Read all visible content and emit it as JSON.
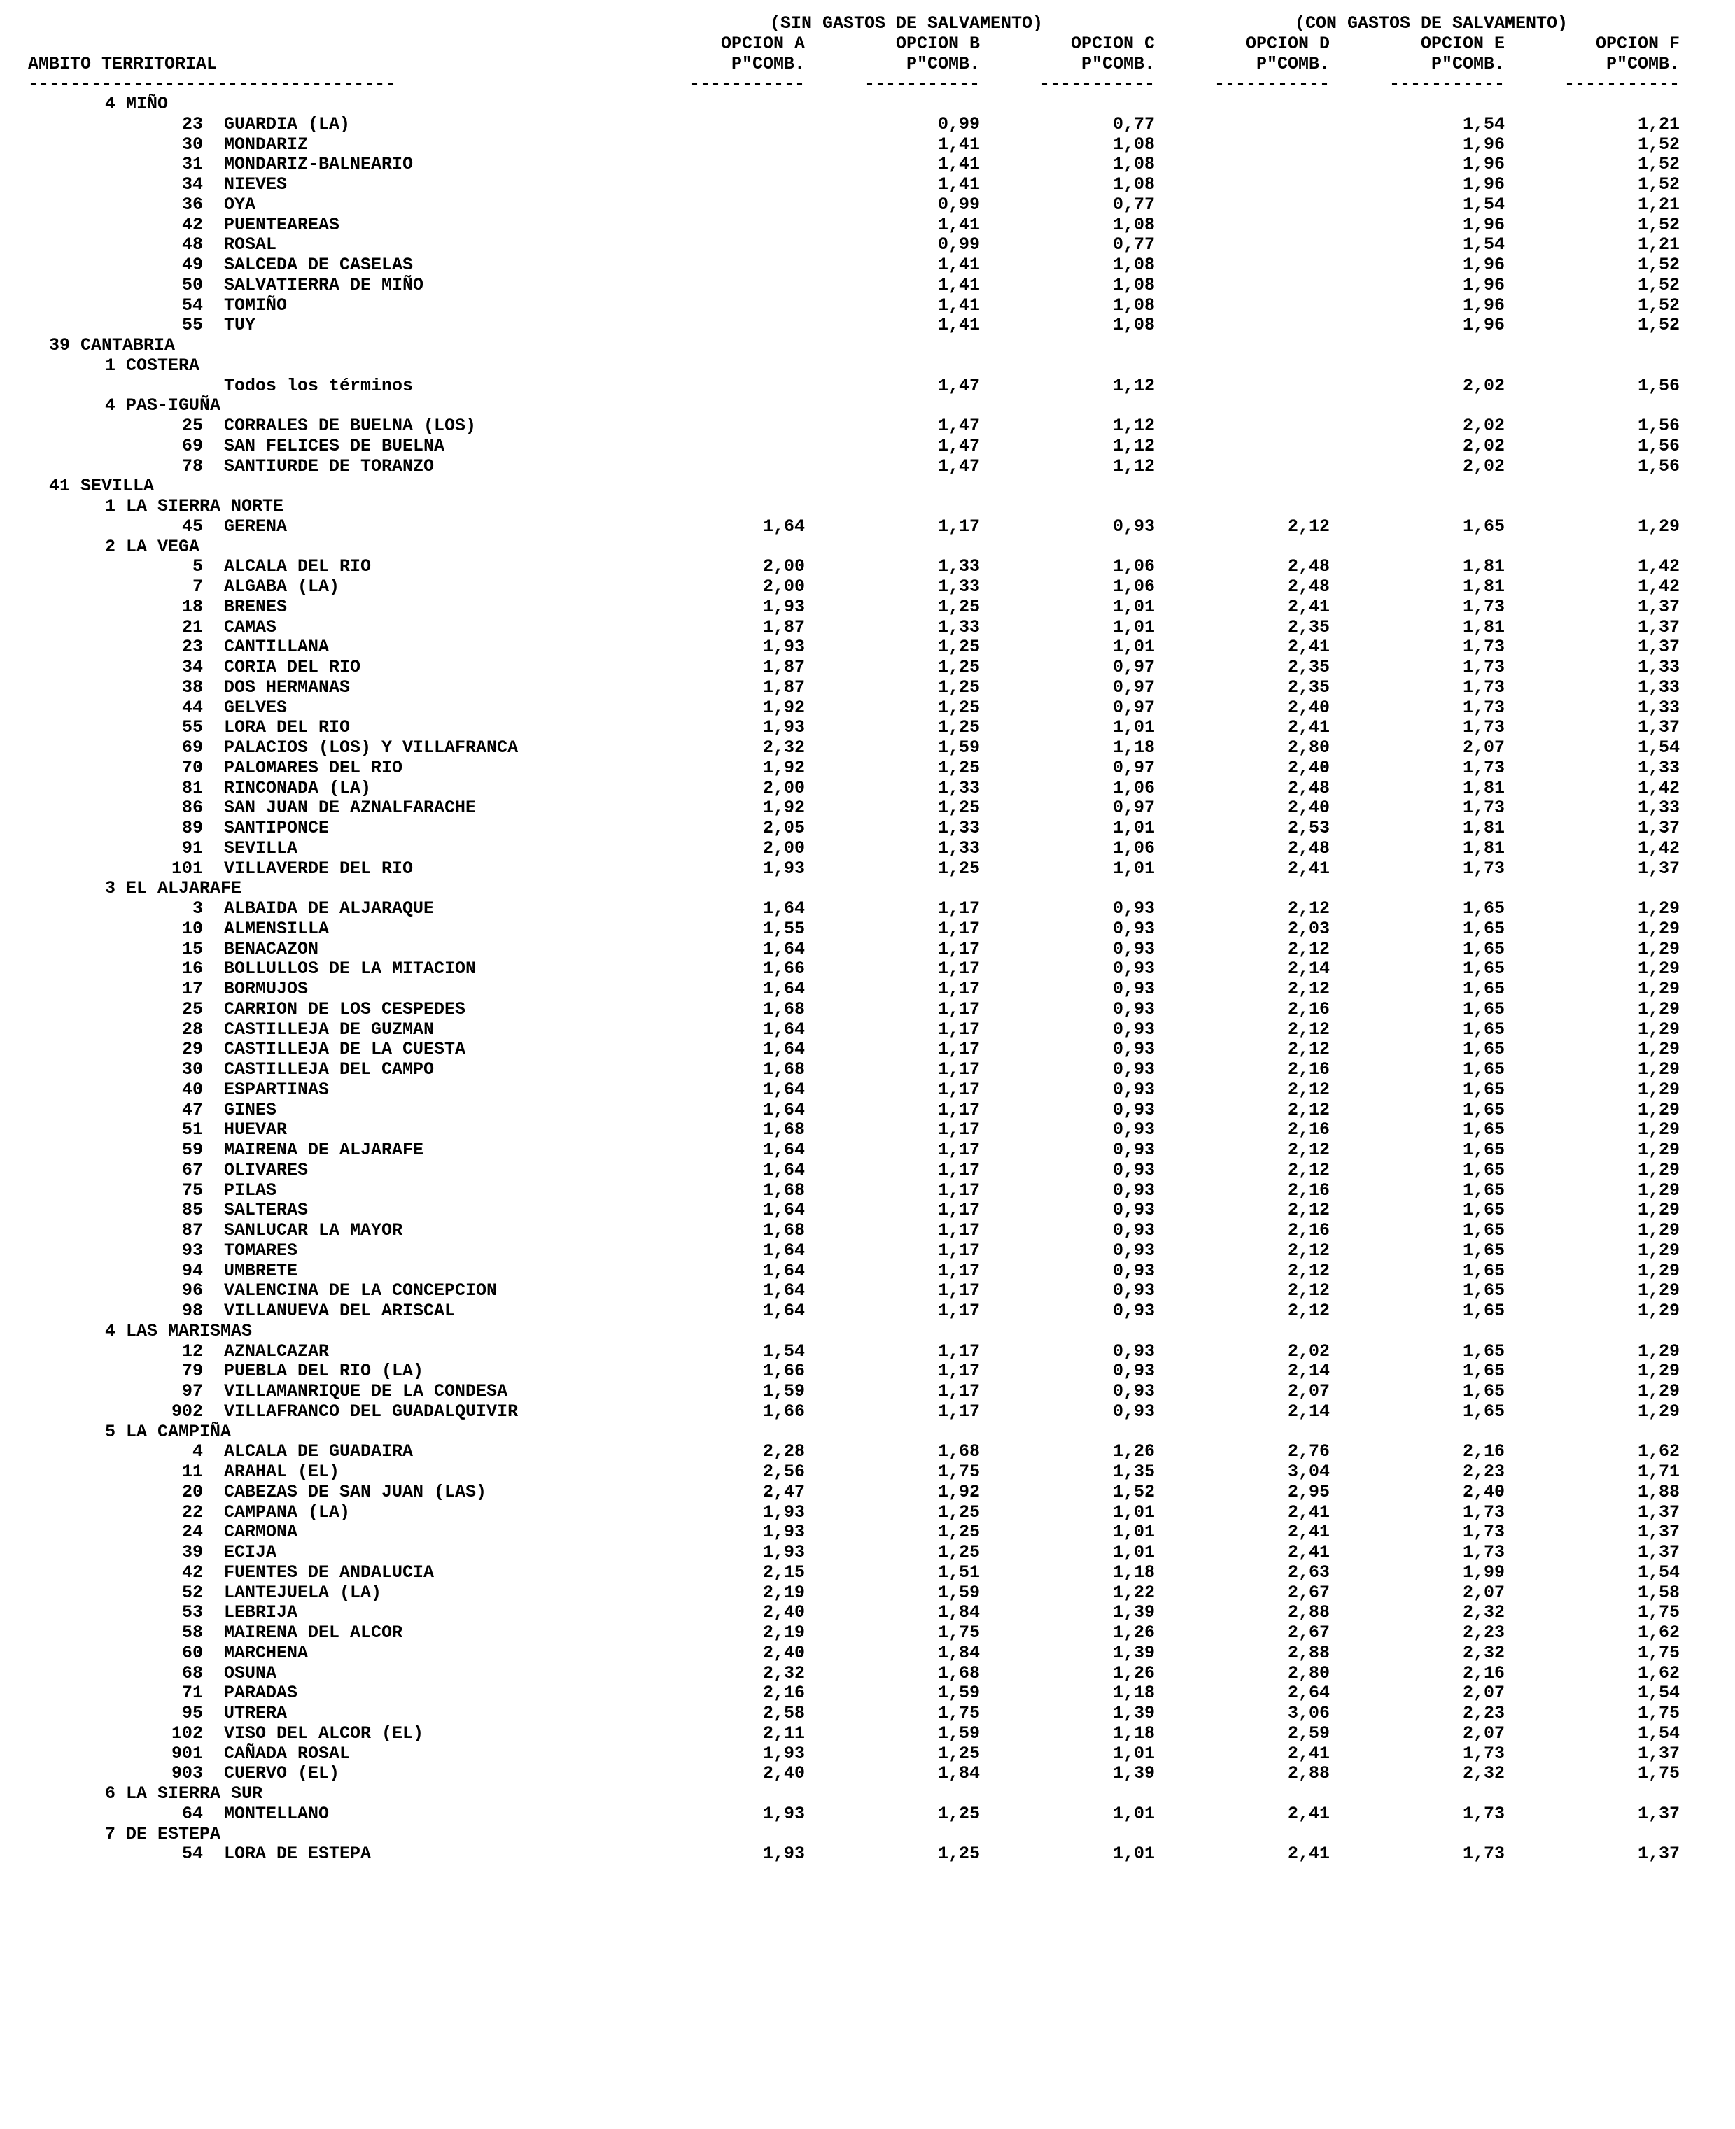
{
  "headers": {
    "ambito": "AMBITO TERRITORIAL",
    "group_sin": "(SIN GASTOS DE SALVAMENTO)",
    "group_con": "(CON GASTOS DE SALVAMENTO)",
    "opA1": "OPCION A",
    "opA2": "P\"COMB.",
    "opB1": "OPCION B",
    "opB2": "P\"COMB.",
    "opC1": "OPCION C",
    "opC2": "P\"COMB.",
    "opD1": "OPCION D",
    "opD2": "P\"COMB.",
    "opE1": "OPCION E",
    "opE2": "P\"COMB.",
    "opF1": "OPCION F",
    "opF2": "P\"COMB."
  },
  "sep": {
    "ambito": "-----------------------------------",
    "col": "-----------"
  },
  "sections": [
    {
      "comarca": "4 MIÑO",
      "rows": [
        {
          "code": "23",
          "name": "GUARDIA (LA)",
          "a": "",
          "b": "0,99",
          "c": "0,77",
          "d": "",
          "e": "1,54",
          "f": "1,21"
        },
        {
          "code": "30",
          "name": "MONDARIZ",
          "a": "",
          "b": "1,41",
          "c": "1,08",
          "d": "",
          "e": "1,96",
          "f": "1,52"
        },
        {
          "code": "31",
          "name": "MONDARIZ-BALNEARIO",
          "a": "",
          "b": "1,41",
          "c": "1,08",
          "d": "",
          "e": "1,96",
          "f": "1,52"
        },
        {
          "code": "34",
          "name": "NIEVES",
          "a": "",
          "b": "1,41",
          "c": "1,08",
          "d": "",
          "e": "1,96",
          "f": "1,52"
        },
        {
          "code": "36",
          "name": "OYA",
          "a": "",
          "b": "0,99",
          "c": "0,77",
          "d": "",
          "e": "1,54",
          "f": "1,21"
        },
        {
          "code": "42",
          "name": "PUENTEAREAS",
          "a": "",
          "b": "1,41",
          "c": "1,08",
          "d": "",
          "e": "1,96",
          "f": "1,52"
        },
        {
          "code": "48",
          "name": "ROSAL",
          "a": "",
          "b": "0,99",
          "c": "0,77",
          "d": "",
          "e": "1,54",
          "f": "1,21"
        },
        {
          "code": "49",
          "name": "SALCEDA DE CASELAS",
          "a": "",
          "b": "1,41",
          "c": "1,08",
          "d": "",
          "e": "1,96",
          "f": "1,52"
        },
        {
          "code": "50",
          "name": "SALVATIERRA DE MIÑO",
          "a": "",
          "b": "1,41",
          "c": "1,08",
          "d": "",
          "e": "1,96",
          "f": "1,52"
        },
        {
          "code": "54",
          "name": "TOMIÑO",
          "a": "",
          "b": "1,41",
          "c": "1,08",
          "d": "",
          "e": "1,96",
          "f": "1,52"
        },
        {
          "code": "55",
          "name": "TUY",
          "a": "",
          "b": "1,41",
          "c": "1,08",
          "d": "",
          "e": "1,96",
          "f": "1,52"
        }
      ]
    },
    {
      "prov": "39 CANTABRIA",
      "comarca": "1 COSTERA",
      "rows": [
        {
          "full": "Todos los términos",
          "a": "",
          "b": "1,47",
          "c": "1,12",
          "d": "",
          "e": "2,02",
          "f": "1,56"
        }
      ]
    },
    {
      "comarca": "4 PAS-IGUÑA",
      "rows": [
        {
          "code": "25",
          "name": "CORRALES DE BUELNA (LOS)",
          "a": "",
          "b": "1,47",
          "c": "1,12",
          "d": "",
          "e": "2,02",
          "f": "1,56"
        },
        {
          "code": "69",
          "name": "SAN FELICES DE BUELNA",
          "a": "",
          "b": "1,47",
          "c": "1,12",
          "d": "",
          "e": "2,02",
          "f": "1,56"
        },
        {
          "code": "78",
          "name": "SANTIURDE DE TORANZO",
          "a": "",
          "b": "1,47",
          "c": "1,12",
          "d": "",
          "e": "2,02",
          "f": "1,56"
        }
      ]
    },
    {
      "prov": "41 SEVILLA",
      "comarca": "1 LA SIERRA NORTE",
      "rows": [
        {
          "code": "45",
          "name": "GERENA",
          "a": "1,64",
          "b": "1,17",
          "c": "0,93",
          "d": "2,12",
          "e": "1,65",
          "f": "1,29"
        }
      ]
    },
    {
      "comarca": "2 LA VEGA",
      "rows": [
        {
          "code": "5",
          "name": "ALCALA DEL RIO",
          "a": "2,00",
          "b": "1,33",
          "c": "1,06",
          "d": "2,48",
          "e": "1,81",
          "f": "1,42"
        },
        {
          "code": "7",
          "name": "ALGABA (LA)",
          "a": "2,00",
          "b": "1,33",
          "c": "1,06",
          "d": "2,48",
          "e": "1,81",
          "f": "1,42"
        },
        {
          "code": "18",
          "name": "BRENES",
          "a": "1,93",
          "b": "1,25",
          "c": "1,01",
          "d": "2,41",
          "e": "1,73",
          "f": "1,37"
        },
        {
          "code": "21",
          "name": "CAMAS",
          "a": "1,87",
          "b": "1,33",
          "c": "1,01",
          "d": "2,35",
          "e": "1,81",
          "f": "1,37"
        },
        {
          "code": "23",
          "name": "CANTILLANA",
          "a": "1,93",
          "b": "1,25",
          "c": "1,01",
          "d": "2,41",
          "e": "1,73",
          "f": "1,37"
        },
        {
          "code": "34",
          "name": "CORIA DEL RIO",
          "a": "1,87",
          "b": "1,25",
          "c": "0,97",
          "d": "2,35",
          "e": "1,73",
          "f": "1,33"
        },
        {
          "code": "38",
          "name": "DOS HERMANAS",
          "a": "1,87",
          "b": "1,25",
          "c": "0,97",
          "d": "2,35",
          "e": "1,73",
          "f": "1,33"
        },
        {
          "code": "44",
          "name": "GELVES",
          "a": "1,92",
          "b": "1,25",
          "c": "0,97",
          "d": "2,40",
          "e": "1,73",
          "f": "1,33"
        },
        {
          "code": "55",
          "name": "LORA DEL RIO",
          "a": "1,93",
          "b": "1,25",
          "c": "1,01",
          "d": "2,41",
          "e": "1,73",
          "f": "1,37"
        },
        {
          "code": "69",
          "name": "PALACIOS (LOS) Y VILLAFRANCA",
          "a": "2,32",
          "b": "1,59",
          "c": "1,18",
          "d": "2,80",
          "e": "2,07",
          "f": "1,54"
        },
        {
          "code": "70",
          "name": "PALOMARES DEL RIO",
          "a": "1,92",
          "b": "1,25",
          "c": "0,97",
          "d": "2,40",
          "e": "1,73",
          "f": "1,33"
        },
        {
          "code": "81",
          "name": "RINCONADA (LA)",
          "a": "2,00",
          "b": "1,33",
          "c": "1,06",
          "d": "2,48",
          "e": "1,81",
          "f": "1,42"
        },
        {
          "code": "86",
          "name": "SAN JUAN DE AZNALFARACHE",
          "a": "1,92",
          "b": "1,25",
          "c": "0,97",
          "d": "2,40",
          "e": "1,73",
          "f": "1,33"
        },
        {
          "code": "89",
          "name": "SANTIPONCE",
          "a": "2,05",
          "b": "1,33",
          "c": "1,01",
          "d": "2,53",
          "e": "1,81",
          "f": "1,37"
        },
        {
          "code": "91",
          "name": "SEVILLA",
          "a": "2,00",
          "b": "1,33",
          "c": "1,06",
          "d": "2,48",
          "e": "1,81",
          "f": "1,42"
        },
        {
          "code": "101",
          "name": "VILLAVERDE DEL RIO",
          "a": "1,93",
          "b": "1,25",
          "c": "1,01",
          "d": "2,41",
          "e": "1,73",
          "f": "1,37"
        }
      ]
    },
    {
      "comarca": "3 EL ALJARAFE",
      "rows": [
        {
          "code": "3",
          "name": "ALBAIDA DE ALJARAQUE",
          "a": "1,64",
          "b": "1,17",
          "c": "0,93",
          "d": "2,12",
          "e": "1,65",
          "f": "1,29"
        },
        {
          "code": "10",
          "name": "ALMENSILLA",
          "a": "1,55",
          "b": "1,17",
          "c": "0,93",
          "d": "2,03",
          "e": "1,65",
          "f": "1,29"
        },
        {
          "code": "15",
          "name": "BENACAZON",
          "a": "1,64",
          "b": "1,17",
          "c": "0,93",
          "d": "2,12",
          "e": "1,65",
          "f": "1,29"
        },
        {
          "code": "16",
          "name": "BOLLULLOS DE LA MITACION",
          "a": "1,66",
          "b": "1,17",
          "c": "0,93",
          "d": "2,14",
          "e": "1,65",
          "f": "1,29"
        },
        {
          "code": "17",
          "name": "BORMUJOS",
          "a": "1,64",
          "b": "1,17",
          "c": "0,93",
          "d": "2,12",
          "e": "1,65",
          "f": "1,29"
        },
        {
          "code": "25",
          "name": "CARRION DE LOS CESPEDES",
          "a": "1,68",
          "b": "1,17",
          "c": "0,93",
          "d": "2,16",
          "e": "1,65",
          "f": "1,29"
        },
        {
          "code": "28",
          "name": "CASTILLEJA DE GUZMAN",
          "a": "1,64",
          "b": "1,17",
          "c": "0,93",
          "d": "2,12",
          "e": "1,65",
          "f": "1,29"
        },
        {
          "code": "29",
          "name": "CASTILLEJA DE LA CUESTA",
          "a": "1,64",
          "b": "1,17",
          "c": "0,93",
          "d": "2,12",
          "e": "1,65",
          "f": "1,29"
        },
        {
          "code": "30",
          "name": "CASTILLEJA DEL CAMPO",
          "a": "1,68",
          "b": "1,17",
          "c": "0,93",
          "d": "2,16",
          "e": "1,65",
          "f": "1,29"
        },
        {
          "code": "40",
          "name": "ESPARTINAS",
          "a": "1,64",
          "b": "1,17",
          "c": "0,93",
          "d": "2,12",
          "e": "1,65",
          "f": "1,29"
        },
        {
          "code": "47",
          "name": "GINES",
          "a": "1,64",
          "b": "1,17",
          "c": "0,93",
          "d": "2,12",
          "e": "1,65",
          "f": "1,29"
        },
        {
          "code": "51",
          "name": "HUEVAR",
          "a": "1,68",
          "b": "1,17",
          "c": "0,93",
          "d": "2,16",
          "e": "1,65",
          "f": "1,29"
        },
        {
          "code": "59",
          "name": "MAIRENA DE ALJARAFE",
          "a": "1,64",
          "b": "1,17",
          "c": "0,93",
          "d": "2,12",
          "e": "1,65",
          "f": "1,29"
        },
        {
          "code": "67",
          "name": "OLIVARES",
          "a": "1,64",
          "b": "1,17",
          "c": "0,93",
          "d": "2,12",
          "e": "1,65",
          "f": "1,29"
        },
        {
          "code": "75",
          "name": "PILAS",
          "a": "1,68",
          "b": "1,17",
          "c": "0,93",
          "d": "2,16",
          "e": "1,65",
          "f": "1,29"
        },
        {
          "code": "85",
          "name": "SALTERAS",
          "a": "1,64",
          "b": "1,17",
          "c": "0,93",
          "d": "2,12",
          "e": "1,65",
          "f": "1,29"
        },
        {
          "code": "87",
          "name": "SANLUCAR LA MAYOR",
          "a": "1,68",
          "b": "1,17",
          "c": "0,93",
          "d": "2,16",
          "e": "1,65",
          "f": "1,29"
        },
        {
          "code": "93",
          "name": "TOMARES",
          "a": "1,64",
          "b": "1,17",
          "c": "0,93",
          "d": "2,12",
          "e": "1,65",
          "f": "1,29"
        },
        {
          "code": "94",
          "name": "UMBRETE",
          "a": "1,64",
          "b": "1,17",
          "c": "0,93",
          "d": "2,12",
          "e": "1,65",
          "f": "1,29"
        },
        {
          "code": "96",
          "name": "VALENCINA DE LA CONCEPCION",
          "a": "1,64",
          "b": "1,17",
          "c": "0,93",
          "d": "2,12",
          "e": "1,65",
          "f": "1,29"
        },
        {
          "code": "98",
          "name": "VILLANUEVA DEL ARISCAL",
          "a": "1,64",
          "b": "1,17",
          "c": "0,93",
          "d": "2,12",
          "e": "1,65",
          "f": "1,29"
        }
      ]
    },
    {
      "comarca": "4 LAS MARISMAS",
      "rows": [
        {
          "code": "12",
          "name": "AZNALCAZAR",
          "a": "1,54",
          "b": "1,17",
          "c": "0,93",
          "d": "2,02",
          "e": "1,65",
          "f": "1,29"
        },
        {
          "code": "79",
          "name": "PUEBLA DEL RIO (LA)",
          "a": "1,66",
          "b": "1,17",
          "c": "0,93",
          "d": "2,14",
          "e": "1,65",
          "f": "1,29"
        },
        {
          "code": "97",
          "name": "VILLAMANRIQUE DE LA CONDESA",
          "a": "1,59",
          "b": "1,17",
          "c": "0,93",
          "d": "2,07",
          "e": "1,65",
          "f": "1,29"
        },
        {
          "code": "902",
          "name": "VILLAFRANCO DEL GUADALQUIVIR",
          "a": "1,66",
          "b": "1,17",
          "c": "0,93",
          "d": "2,14",
          "e": "1,65",
          "f": "1,29"
        }
      ]
    },
    {
      "comarca": "5 LA CAMPIÑA",
      "rows": [
        {
          "code": "4",
          "name": "ALCALA DE GUADAIRA",
          "a": "2,28",
          "b": "1,68",
          "c": "1,26",
          "d": "2,76",
          "e": "2,16",
          "f": "1,62"
        },
        {
          "code": "11",
          "name": "ARAHAL (EL)",
          "a": "2,56",
          "b": "1,75",
          "c": "1,35",
          "d": "3,04",
          "e": "2,23",
          "f": "1,71"
        },
        {
          "code": "20",
          "name": "CABEZAS DE SAN JUAN (LAS)",
          "a": "2,47",
          "b": "1,92",
          "c": "1,52",
          "d": "2,95",
          "e": "2,40",
          "f": "1,88"
        },
        {
          "code": "22",
          "name": "CAMPANA (LA)",
          "a": "1,93",
          "b": "1,25",
          "c": "1,01",
          "d": "2,41",
          "e": "1,73",
          "f": "1,37"
        },
        {
          "code": "24",
          "name": "CARMONA",
          "a": "1,93",
          "b": "1,25",
          "c": "1,01",
          "d": "2,41",
          "e": "1,73",
          "f": "1,37"
        },
        {
          "code": "39",
          "name": "ECIJA",
          "a": "1,93",
          "b": "1,25",
          "c": "1,01",
          "d": "2,41",
          "e": "1,73",
          "f": "1,37"
        },
        {
          "code": "42",
          "name": "FUENTES DE ANDALUCIA",
          "a": "2,15",
          "b": "1,51",
          "c": "1,18",
          "d": "2,63",
          "e": "1,99",
          "f": "1,54"
        },
        {
          "code": "52",
          "name": "LANTEJUELA (LA)",
          "a": "2,19",
          "b": "1,59",
          "c": "1,22",
          "d": "2,67",
          "e": "2,07",
          "f": "1,58"
        },
        {
          "code": "53",
          "name": "LEBRIJA",
          "a": "2,40",
          "b": "1,84",
          "c": "1,39",
          "d": "2,88",
          "e": "2,32",
          "f": "1,75"
        },
        {
          "code": "58",
          "name": "MAIRENA DEL ALCOR",
          "a": "2,19",
          "b": "1,75",
          "c": "1,26",
          "d": "2,67",
          "e": "2,23",
          "f": "1,62"
        },
        {
          "code": "60",
          "name": "MARCHENA",
          "a": "2,40",
          "b": "1,84",
          "c": "1,39",
          "d": "2,88",
          "e": "2,32",
          "f": "1,75"
        },
        {
          "code": "68",
          "name": "OSUNA",
          "a": "2,32",
          "b": "1,68",
          "c": "1,26",
          "d": "2,80",
          "e": "2,16",
          "f": "1,62"
        },
        {
          "code": "71",
          "name": "PARADAS",
          "a": "2,16",
          "b": "1,59",
          "c": "1,18",
          "d": "2,64",
          "e": "2,07",
          "f": "1,54"
        },
        {
          "code": "95",
          "name": "UTRERA",
          "a": "2,58",
          "b": "1,75",
          "c": "1,39",
          "d": "3,06",
          "e": "2,23",
          "f": "1,75"
        },
        {
          "code": "102",
          "name": "VISO DEL ALCOR (EL)",
          "a": "2,11",
          "b": "1,59",
          "c": "1,18",
          "d": "2,59",
          "e": "2,07",
          "f": "1,54"
        },
        {
          "code": "901",
          "name": "CAÑADA ROSAL",
          "a": "1,93",
          "b": "1,25",
          "c": "1,01",
          "d": "2,41",
          "e": "1,73",
          "f": "1,37"
        },
        {
          "code": "903",
          "name": "CUERVO (EL)",
          "a": "2,40",
          "b": "1,84",
          "c": "1,39",
          "d": "2,88",
          "e": "2,32",
          "f": "1,75"
        }
      ]
    },
    {
      "comarca": "6 LA SIERRA SUR",
      "rows": [
        {
          "code": "64",
          "name": "MONTELLANO",
          "a": "1,93",
          "b": "1,25",
          "c": "1,01",
          "d": "2,41",
          "e": "1,73",
          "f": "1,37"
        }
      ]
    },
    {
      "comarca": "7 DE ESTEPA",
      "rows": [
        {
          "code": "54",
          "name": "LORA DE ESTEPA",
          "a": "1,93",
          "b": "1,25",
          "c": "1,01",
          "d": "2,41",
          "e": "1,73",
          "f": "1,37"
        }
      ]
    }
  ]
}
